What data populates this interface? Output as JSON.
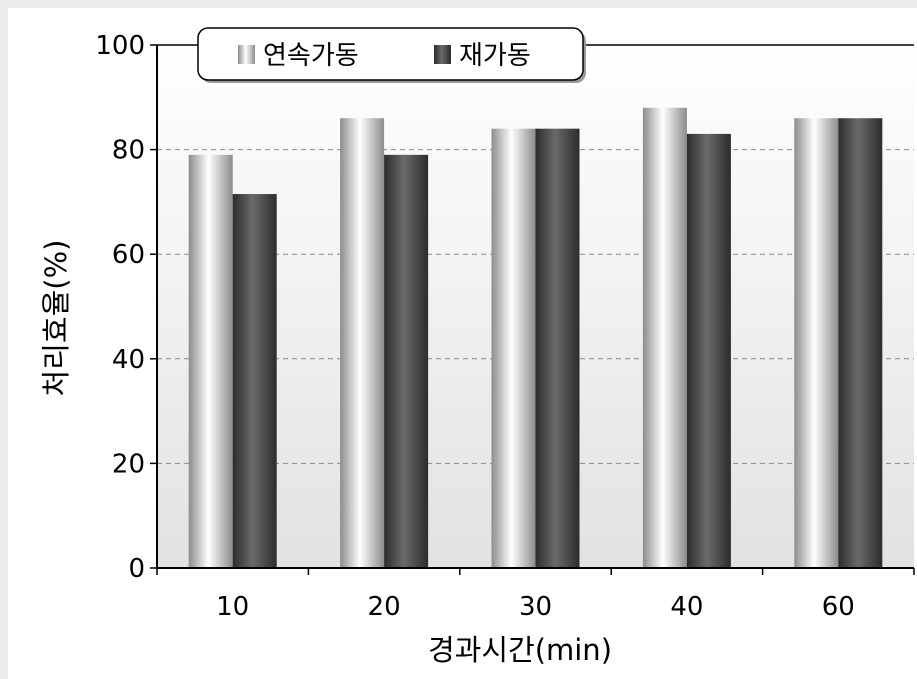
{
  "chart_data": {
    "type": "bar",
    "categories": [
      "10",
      "20",
      "30",
      "40",
      "60"
    ],
    "series": [
      {
        "name": "연속가동",
        "values": [
          79,
          86,
          84,
          88,
          86
        ],
        "style": "light-gray-gradient"
      },
      {
        "name": "재가동",
        "values": [
          71.5,
          79,
          84,
          83,
          86
        ],
        "style": "dark-gray-gradient"
      }
    ],
    "xlabel": "경과시간(min)",
    "ylabel": "처리효율(%)",
    "ylim": [
      0,
      100
    ],
    "yticks": [
      "0",
      "20",
      "40",
      "60",
      "80",
      "100"
    ],
    "grid": "horizontal dashed",
    "legend_position": "top"
  },
  "colors": {
    "axis": "#000000",
    "grid": "#8a8a8a",
    "plot_bg_top": "#ffffff",
    "plot_bg_bottom": "#e2e2e2",
    "light_bar_edge": "#8c8c8c",
    "light_bar_mid": "#ffffff",
    "dark_bar_edge": "#2c2c2c",
    "dark_bar_mid": "#6a6a6a"
  }
}
